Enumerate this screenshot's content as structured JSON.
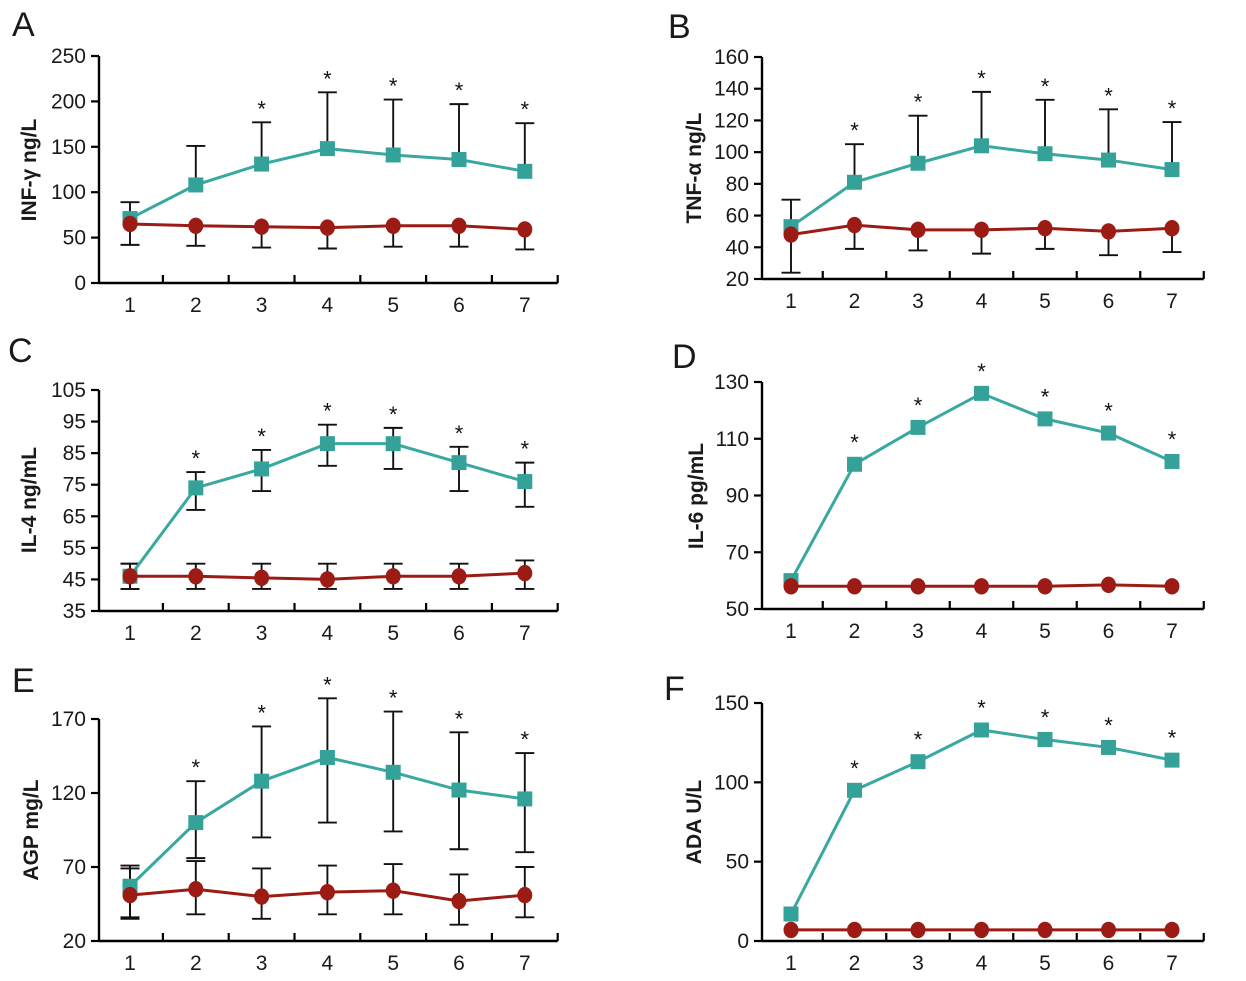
{
  "figure_title": "",
  "significance_marker": "*",
  "colors": {
    "teal_series": "#38a8a0",
    "teal_marker": "#35a29a",
    "red_series": "#9c1b15",
    "error_bar": "#111111",
    "axis": "#000000",
    "text": "#1a1a1a"
  },
  "chart_data": [
    {
      "type": "line",
      "panel_label": "A",
      "ylabel": "INF-γ ng/L",
      "xlabel": "",
      "ylim": [
        0,
        250
      ],
      "yticks": [
        0,
        50,
        100,
        150,
        200,
        250
      ],
      "x": [
        1,
        2,
        3,
        4,
        5,
        6,
        7
      ],
      "series": [
        {
          "name": "teal-squares",
          "marker": "square",
          "color": "#38a8a0",
          "values": [
            71,
            108,
            131,
            148,
            141,
            136,
            123
          ],
          "err_hi": [
            89,
            151,
            177,
            210,
            202,
            197,
            176
          ],
          "err_lo": [
            42,
            null,
            null,
            null,
            null,
            null,
            null
          ],
          "asterisk_points": [
            3,
            4,
            5,
            6,
            7
          ]
        },
        {
          "name": "red-circles",
          "marker": "circle",
          "color": "#9c1b15",
          "values": [
            65,
            63,
            62,
            61,
            63,
            63,
            59
          ],
          "err_hi": null,
          "err_lo": [
            null,
            41,
            39,
            38,
            40,
            40,
            37
          ],
          "asterisk_points": []
        }
      ]
    },
    {
      "type": "line",
      "panel_label": "B",
      "ylabel": "TNF-α ng/L",
      "xlabel": "",
      "ylim": [
        20,
        160
      ],
      "yticks": [
        20,
        40,
        60,
        80,
        100,
        120,
        140,
        160
      ],
      "x": [
        1,
        2,
        3,
        4,
        5,
        6,
        7
      ],
      "series": [
        {
          "name": "teal-squares",
          "marker": "square",
          "color": "#38a8a0",
          "values": [
            53,
            81,
            93,
            104,
            99,
            95,
            89
          ],
          "err_hi": [
            70,
            105,
            123,
            138,
            133,
            127,
            119
          ],
          "err_lo": [
            24,
            null,
            null,
            null,
            null,
            null,
            null
          ],
          "asterisk_points": [
            2,
            3,
            4,
            5,
            6,
            7
          ]
        },
        {
          "name": "red-circles",
          "marker": "circle",
          "color": "#9c1b15",
          "values": [
            48,
            54,
            51,
            51,
            52,
            50,
            52
          ],
          "err_hi": null,
          "err_lo": [
            null,
            39,
            38,
            36,
            39,
            35,
            37
          ],
          "asterisk_points": []
        }
      ]
    },
    {
      "type": "line",
      "panel_label": "C",
      "ylabel": "IL-4 ng/mL",
      "xlabel": "",
      "ylim": [
        35,
        105
      ],
      "yticks": [
        35,
        45,
        55,
        65,
        75,
        85,
        95,
        105
      ],
      "x": [
        1,
        2,
        3,
        4,
        5,
        6,
        7
      ],
      "series": [
        {
          "name": "teal-squares",
          "marker": "square",
          "color": "#38a8a0",
          "values": [
            46,
            74,
            80,
            88,
            88,
            82,
            76
          ],
          "err_hi": [
            50,
            79,
            86,
            94,
            93,
            87,
            82
          ],
          "err_lo": [
            42,
            67,
            73,
            81,
            80,
            73,
            68
          ],
          "asterisk_points": [
            2,
            3,
            4,
            5,
            6,
            7
          ]
        },
        {
          "name": "red-circles",
          "marker": "circle",
          "color": "#9c1b15",
          "values": [
            46,
            46,
            45.5,
            45,
            46,
            46,
            47
          ],
          "err_hi": [
            50,
            50,
            50,
            50,
            50,
            50,
            51
          ],
          "err_lo": [
            42,
            42,
            42,
            42,
            42,
            42,
            42
          ],
          "asterisk_points": []
        }
      ]
    },
    {
      "type": "line",
      "panel_label": "D",
      "ylabel": "IL-6 pg/mL",
      "xlabel": "",
      "ylim": [
        50,
        130
      ],
      "yticks": [
        50,
        70,
        90,
        110,
        130
      ],
      "x": [
        1,
        2,
        3,
        4,
        5,
        6,
        7
      ],
      "series": [
        {
          "name": "teal-squares",
          "marker": "square",
          "color": "#38a8a0",
          "values": [
            60,
            101,
            114,
            126,
            117,
            112,
            102
          ],
          "err_hi": null,
          "err_lo": null,
          "asterisk_points": [
            2,
            3,
            4,
            5,
            6,
            7
          ]
        },
        {
          "name": "red-circles",
          "marker": "circle",
          "color": "#9c1b15",
          "values": [
            58,
            58,
            58,
            58,
            58,
            58.5,
            58
          ],
          "err_hi": null,
          "err_lo": null,
          "asterisk_points": []
        }
      ]
    },
    {
      "type": "line",
      "panel_label": "E",
      "ylabel": "AGP mg/L",
      "xlabel": "",
      "ylim": [
        20,
        170
      ],
      "yticks": [
        20,
        70,
        120,
        170
      ],
      "x": [
        1,
        2,
        3,
        4,
        5,
        6,
        7
      ],
      "series": [
        {
          "name": "teal-squares",
          "marker": "square",
          "color": "#38a8a0",
          "values": [
            57,
            100,
            128,
            144,
            134,
            122,
            116
          ],
          "err_hi": [
            71,
            128,
            165,
            184,
            175,
            161,
            147
          ],
          "err_lo": [
            35,
            76,
            90,
            100,
            94,
            82,
            80
          ],
          "asterisk_points": [
            2,
            3,
            4,
            5,
            6,
            7
          ]
        },
        {
          "name": "red-circles",
          "marker": "circle",
          "color": "#9c1b15",
          "values": [
            51,
            55,
            50,
            53,
            54,
            47,
            51
          ],
          "err_hi": [
            69,
            74,
            69,
            71,
            72,
            65,
            70
          ],
          "err_lo": [
            36,
            38,
            35,
            38,
            38,
            31,
            36
          ],
          "asterisk_points": []
        }
      ]
    },
    {
      "type": "line",
      "panel_label": "F",
      "ylabel": "ADA U/L",
      "xlabel": "",
      "ylim": [
        0,
        150
      ],
      "yticks": [
        0,
        50,
        100,
        150
      ],
      "x": [
        1,
        2,
        3,
        4,
        5,
        6,
        7
      ],
      "series": [
        {
          "name": "teal-squares",
          "marker": "square",
          "color": "#38a8a0",
          "values": [
            17,
            95,
            113,
            133,
            127,
            122,
            114
          ],
          "err_hi": null,
          "err_lo": null,
          "asterisk_points": [
            2,
            3,
            4,
            5,
            6,
            7
          ]
        },
        {
          "name": "red-circles",
          "marker": "circle",
          "color": "#9c1b15",
          "values": [
            7,
            7,
            7,
            7,
            7,
            7,
            7
          ],
          "err_hi": null,
          "err_lo": null,
          "asterisk_points": []
        }
      ]
    }
  ]
}
